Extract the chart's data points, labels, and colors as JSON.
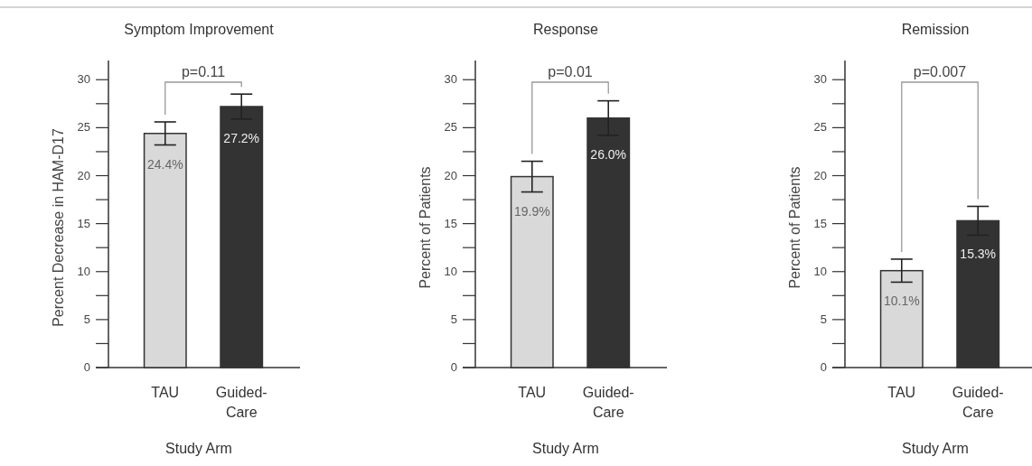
{
  "chart_data": [
    {
      "type": "bar",
      "title": "Symptom Improvement",
      "xlabel": "Study Arm",
      "ylabel": "Percent Decrease in HAM-D17",
      "categories": [
        "TAU",
        "Guided-Care"
      ],
      "values": [
        24.4,
        27.2
      ],
      "colors": [
        "#d9d9d9",
        "#333333"
      ],
      "errors": [
        1.2,
        1.3
      ],
      "value_labels": [
        "24.4%",
        "27.2%"
      ],
      "ylim": [
        0,
        32
      ],
      "yticks": [
        0,
        {
          "value": 2.5,
          "label": null
        },
        5,
        {
          "value": 7.5,
          "label": null
        },
        10,
        {
          "value": 12.5,
          "label": null
        },
        15,
        {
          "value": 17.5,
          "label": null
        },
        20,
        {
          "value": 22.5,
          "label": null
        },
        25,
        {
          "value": 27.5,
          "label": null
        },
        30
      ],
      "annotations": [
        "p=0.11"
      ]
    },
    {
      "type": "bar",
      "title": "Response",
      "xlabel": "Study Arm",
      "ylabel": "Percent of Patients",
      "categories": [
        "TAU",
        "Guided-Care"
      ],
      "values": [
        19.9,
        26.0
      ],
      "colors": [
        "#d9d9d9",
        "#333333"
      ],
      "errors": [
        1.6,
        1.8
      ],
      "value_labels": [
        "19.9%",
        "26.0%"
      ],
      "ylim": [
        0,
        32
      ],
      "yticks": [
        0,
        {
          "value": 2.5,
          "label": null
        },
        5,
        {
          "value": 7.5,
          "label": null
        },
        10,
        {
          "value": 12.5,
          "label": null
        },
        15,
        {
          "value": 17.5,
          "label": null
        },
        20,
        {
          "value": 22.5,
          "label": null
        },
        25,
        {
          "value": 27.5,
          "label": null
        },
        30
      ],
      "annotations": [
        "p=0.01"
      ]
    },
    {
      "type": "bar",
      "title": "Remission",
      "xlabel": "Study Arm",
      "ylabel": "Percent of Patients",
      "categories": [
        "TAU",
        "Guided-Care"
      ],
      "values": [
        10.1,
        15.3
      ],
      "colors": [
        "#d9d9d9",
        "#333333"
      ],
      "errors": [
        1.2,
        1.5
      ],
      "value_labels": [
        "10.1%",
        "15.3%"
      ],
      "ylim": [
        0,
        32
      ],
      "yticks": [
        0,
        {
          "value": 2.5,
          "label": null
        },
        5,
        {
          "value": 7.5,
          "label": null
        },
        10,
        {
          "value": 12.5,
          "label": null
        },
        15,
        {
          "value": 17.5,
          "label": null
        },
        20,
        {
          "value": 22.5,
          "label": null
        },
        25,
        {
          "value": 27.5,
          "label": null
        },
        30
      ],
      "annotations": [
        "p=0.007"
      ]
    }
  ]
}
